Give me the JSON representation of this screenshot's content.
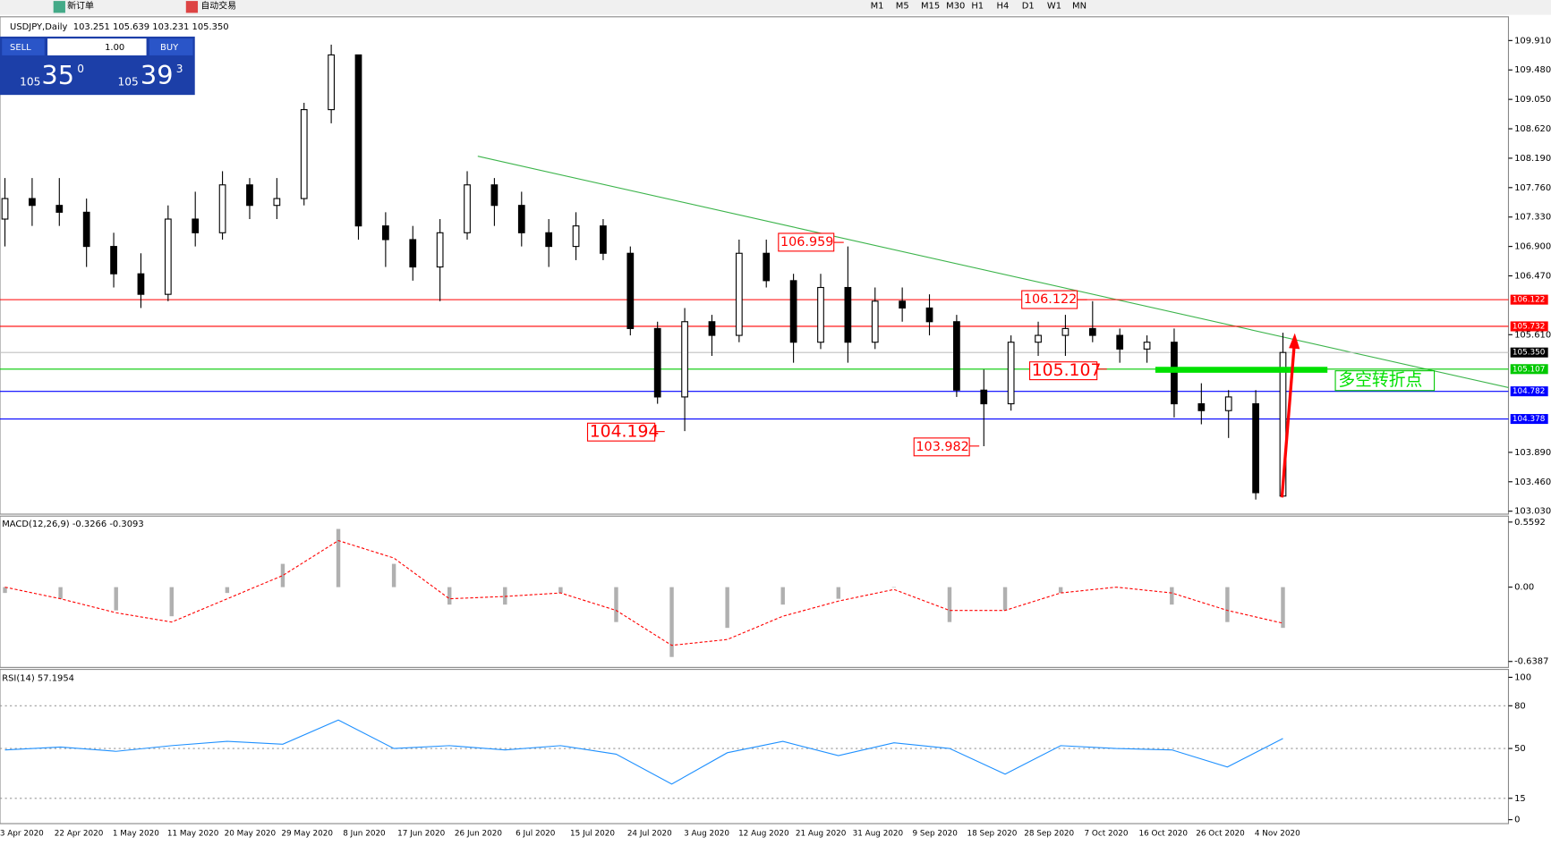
{
  "toolbar": {
    "new_order": "新订单",
    "auto_trading": "自动交易",
    "timeframes": [
      "M1",
      "M5",
      "M15",
      "M30",
      "H1",
      "H4",
      "D1",
      "W1",
      "MN"
    ]
  },
  "trade_panel": {
    "sell": "SELL",
    "buy": "BUY",
    "lots": "1.00",
    "bid": [
      "105",
      "35",
      "0"
    ],
    "ask": [
      "105",
      "39",
      "3"
    ]
  },
  "chart_data": {
    "type": "candlestick",
    "title": "USDJPY,Daily",
    "ohlc_text": "103.251 105.639 103.231 105.350",
    "categories": [
      "3 Apr 2020",
      "22 Apr 2020",
      "1 May 2020",
      "11 May 2020",
      "20 May 2020",
      "29 May 2020",
      "8 Jun 2020",
      "17 Jun 2020",
      "26 Jun 2020",
      "6 Jul 2020",
      "15 Jul 2020",
      "24 Jul 2020",
      "3 Aug 2020",
      "12 Aug 2020",
      "21 Aug 2020",
      "31 Aug 2020",
      "9 Sep 2020",
      "18 Sep 2020",
      "28 Sep 2020",
      "7 Oct 2020",
      "16 Oct 2020",
      "26 Oct 2020",
      "4 Nov 2020"
    ],
    "candles": [
      [
        107.3,
        107.9,
        106.9,
        107.6
      ],
      [
        107.6,
        107.9,
        107.2,
        107.5
      ],
      [
        107.5,
        107.9,
        107.2,
        107.4
      ],
      [
        107.4,
        107.6,
        106.6,
        106.9
      ],
      [
        106.9,
        107.1,
        106.3,
        106.5
      ],
      [
        106.5,
        106.8,
        106.0,
        106.2
      ],
      [
        106.2,
        107.5,
        106.1,
        107.3
      ],
      [
        107.3,
        107.7,
        106.9,
        107.1
      ],
      [
        107.1,
        108.0,
        107.0,
        107.8
      ],
      [
        107.8,
        107.9,
        107.3,
        107.5
      ],
      [
        107.5,
        107.9,
        107.3,
        107.6
      ],
      [
        107.6,
        109.0,
        107.5,
        108.9
      ],
      [
        108.9,
        109.85,
        108.7,
        109.7
      ],
      [
        109.7,
        109.7,
        107.0,
        107.2
      ],
      [
        107.2,
        107.4,
        106.6,
        107.0
      ],
      [
        107.0,
        107.2,
        106.4,
        106.6
      ],
      [
        106.6,
        107.3,
        106.1,
        107.1
      ],
      [
        107.1,
        108.0,
        107.0,
        107.8
      ],
      [
        107.8,
        107.9,
        107.2,
        107.5
      ],
      [
        107.5,
        107.7,
        106.9,
        107.1
      ],
      [
        107.1,
        107.3,
        106.6,
        106.9
      ],
      [
        106.9,
        107.4,
        106.7,
        107.2
      ],
      [
        107.2,
        107.3,
        106.7,
        106.8
      ],
      [
        106.8,
        106.9,
        105.6,
        105.7
      ],
      [
        105.7,
        105.8,
        104.6,
        104.7
      ],
      [
        104.7,
        106.0,
        104.2,
        105.8
      ],
      [
        105.8,
        105.9,
        105.3,
        105.6
      ],
      [
        105.6,
        107.0,
        105.5,
        106.8
      ],
      [
        106.8,
        107.0,
        106.3,
        106.4
      ],
      [
        106.4,
        106.5,
        105.2,
        105.5
      ],
      [
        105.5,
        106.5,
        105.4,
        106.3
      ],
      [
        106.3,
        106.9,
        105.2,
        105.5
      ],
      [
        105.5,
        106.3,
        105.4,
        106.1
      ],
      [
        106.1,
        106.3,
        105.8,
        106.0
      ],
      [
        106.0,
        106.2,
        105.6,
        105.8
      ],
      [
        105.8,
        105.9,
        104.7,
        104.8
      ],
      [
        104.8,
        105.1,
        103.98,
        104.6
      ],
      [
        104.6,
        105.6,
        104.5,
        105.5
      ],
      [
        105.5,
        105.8,
        105.3,
        105.6
      ],
      [
        105.6,
        105.9,
        105.3,
        105.7
      ],
      [
        105.7,
        106.1,
        105.5,
        105.6
      ],
      [
        105.6,
        105.7,
        105.2,
        105.4
      ],
      [
        105.4,
        105.6,
        105.2,
        105.5
      ],
      [
        105.5,
        105.7,
        104.4,
        104.6
      ],
      [
        104.6,
        104.9,
        104.3,
        104.5
      ],
      [
        104.5,
        104.8,
        104.1,
        104.7
      ],
      [
        104.6,
        104.8,
        103.2,
        103.3
      ],
      [
        103.251,
        105.639,
        103.231,
        105.35
      ]
    ],
    "ylim": [
      103.03,
      109.91
    ],
    "yticks": [
      {
        "value": 109.91,
        "label": "109.910"
      },
      {
        "value": 109.48,
        "label": "109.480"
      },
      {
        "value": 109.05,
        "label": "109.050"
      },
      {
        "value": 108.62,
        "label": "108.620"
      },
      {
        "value": 108.19,
        "label": "108.190"
      },
      {
        "value": 107.76,
        "label": "107.760"
      },
      {
        "value": 107.33,
        "label": "107.330"
      },
      {
        "value": 106.9,
        "label": "106.900"
      },
      {
        "value": 106.47,
        "label": "106.470"
      },
      {
        "value": 105.61,
        "label": "105.610"
      },
      {
        "value": 103.89,
        "label": "103.890"
      },
      {
        "value": 103.46,
        "label": "103.460"
      },
      {
        "value": 103.03,
        "label": "103.030"
      }
    ],
    "levels": [
      {
        "value": 106.122,
        "label": "106.122",
        "color": "#ff0000"
      },
      {
        "value": 105.732,
        "label": "105.732",
        "color": "#ff0000"
      },
      {
        "value": 105.35,
        "label": "105.350",
        "color": "#c0c0c0"
      },
      {
        "value": 105.107,
        "label": "105.107",
        "color": "#00c800"
      },
      {
        "value": 104.782,
        "label": "104.782",
        "color": "#0000ff"
      },
      {
        "value": 104.378,
        "label": "104.378",
        "color": "#0000ff"
      }
    ],
    "price_labels": [
      {
        "value": 106.959,
        "label": "106.959"
      },
      {
        "value": 106.122,
        "label": "106.122"
      },
      {
        "value": 105.107,
        "label": "105.107"
      },
      {
        "value": 104.194,
        "label": "104.194"
      },
      {
        "value": 103.982,
        "label": "103.982"
      }
    ],
    "annotation": "多空转折点",
    "macd": {
      "title": "MACD(12,26,9) -0.3266 -0.3093",
      "ylim": [
        -0.6387,
        0.5592
      ],
      "yticks": [
        0.5592,
        {
          "value": 0,
          "label": "0.00"
        },
        -0.6387
      ],
      "histogram": [
        -0.05,
        -0.1,
        -0.2,
        -0.25,
        -0.05,
        0.2,
        0.5,
        0.2,
        -0.15,
        -0.15,
        -0.05,
        -0.3,
        -0.6,
        -0.35,
        -0.15,
        -0.1,
        0.0,
        -0.3,
        -0.2,
        -0.05,
        0.0,
        -0.15,
        -0.3,
        -0.35
      ],
      "signal": [
        0.0,
        -0.1,
        -0.22,
        -0.3,
        -0.1,
        0.1,
        0.4,
        0.25,
        -0.1,
        -0.08,
        -0.05,
        -0.2,
        -0.5,
        -0.45,
        -0.25,
        -0.12,
        -0.02,
        -0.2,
        -0.2,
        -0.05,
        0.0,
        -0.05,
        -0.2,
        -0.31
      ]
    },
    "rsi": {
      "title": "RSI(14) 57.1954",
      "ylim": [
        0,
        100
      ],
      "yticks": [
        100,
        80,
        50,
        15,
        0
      ],
      "levels": [
        80,
        50,
        15
      ],
      "values": [
        49,
        51,
        48,
        52,
        55,
        53,
        70,
        50,
        52,
        49,
        52,
        46,
        25,
        47,
        55,
        45,
        54,
        50,
        32,
        52,
        50,
        49,
        37,
        57
      ]
    }
  }
}
